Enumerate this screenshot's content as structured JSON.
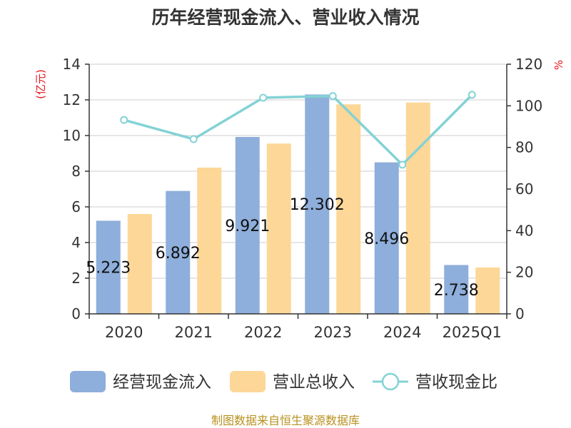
{
  "chart_data": {
    "type": "bar",
    "title": "历年经营现金流入、营业收入情况",
    "categories": [
      "2020",
      "2021",
      "2022",
      "2023",
      "2024",
      "2025Q1"
    ],
    "series": [
      {
        "name": "经营现金流入",
        "type": "bar",
        "color": "#8eaedb",
        "values": [
          5.223,
          6.892,
          9.921,
          12.302,
          8.496,
          2.738
        ],
        "labels": [
          "5.223",
          "6.892",
          "9.921",
          "12.302",
          "8.496",
          "2.738"
        ]
      },
      {
        "name": "营业总收入",
        "type": "bar",
        "color": "#fdd797",
        "values": [
          5.6,
          8.2,
          9.55,
          11.75,
          11.85,
          2.6
        ]
      },
      {
        "name": "营收现金比",
        "type": "line",
        "axis": "right",
        "color": "#84d2d5",
        "values": [
          93.2,
          84.0,
          103.9,
          104.7,
          71.7,
          105.3
        ]
      }
    ],
    "left_axis": {
      "unit": "(亿元)",
      "min": 0,
      "max": 14,
      "ticks": [
        0,
        2,
        4,
        6,
        8,
        10,
        12,
        14
      ]
    },
    "right_axis": {
      "unit": "%",
      "min": 0,
      "max": 120,
      "ticks": [
        0,
        20,
        40,
        60,
        80,
        100,
        120
      ]
    },
    "grid": true,
    "legend_position": "bottom"
  },
  "footer": {
    "source": "制图数据来自恒生聚源数据库"
  },
  "colors": {
    "unit_red": "#e8141a",
    "source_gold": "#b8911f",
    "axis": "#333333",
    "grid": "#cccccc"
  }
}
